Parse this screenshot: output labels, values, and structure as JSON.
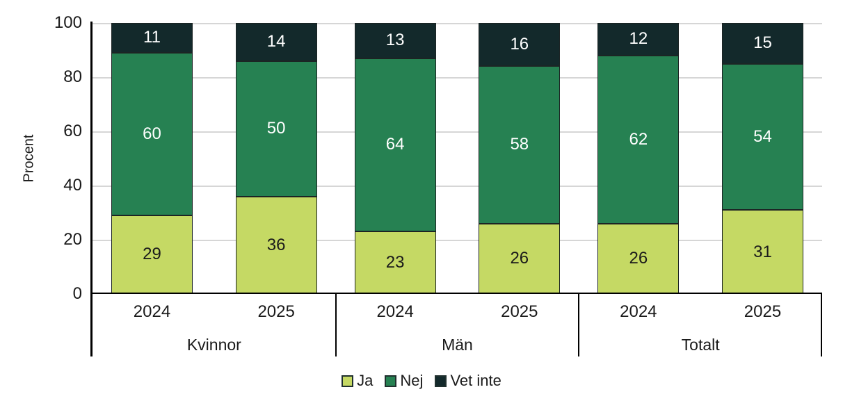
{
  "chart_data": {
    "type": "bar",
    "stacked": true,
    "title": "",
    "xlabel": "",
    "ylabel": "Procent",
    "ylim": [
      0,
      100
    ],
    "yticks": [
      0,
      20,
      40,
      60,
      80,
      100
    ],
    "grid": true,
    "legend_position": "bottom",
    "series": [
      {
        "name": "Ja",
        "color": "#c5d964",
        "label_color": "#1a1a1a"
      },
      {
        "name": "Nej",
        "color": "#268152",
        "label_color": "#ffffff"
      },
      {
        "name": "Vet inte",
        "color": "#13292b",
        "label_color": "#ffffff"
      }
    ],
    "groups": [
      {
        "label": "Kvinnor",
        "bars": [
          {
            "label": "2024",
            "values": [
              29,
              60,
              11
            ]
          },
          {
            "label": "2025",
            "values": [
              36,
              50,
              14
            ]
          }
        ]
      },
      {
        "label": "Män",
        "bars": [
          {
            "label": "2024",
            "values": [
              23,
              64,
              13
            ]
          },
          {
            "label": "2025",
            "values": [
              26,
              58,
              16
            ]
          }
        ]
      },
      {
        "label": "Totalt",
        "bars": [
          {
            "label": "2024",
            "values": [
              26,
              62,
              12
            ]
          },
          {
            "label": "2025",
            "values": [
              31,
              54,
              15
            ]
          }
        ]
      }
    ]
  }
}
